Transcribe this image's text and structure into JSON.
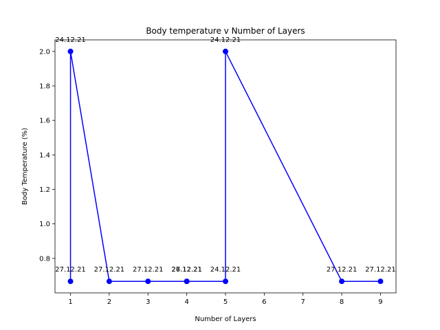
{
  "chart_data": {
    "type": "line",
    "title": "Body temperature v Number of Layers",
    "xlabel": "Number of Layers",
    "ylabel": "Body Temperature (%)",
    "xlim": [
      0.6,
      9.4
    ],
    "ylim": [
      0.6,
      2.067
    ],
    "xticks": [
      1,
      2,
      3,
      4,
      5,
      6,
      7,
      8,
      9
    ],
    "yticks": [
      0.8,
      1.0,
      1.2,
      1.4,
      1.6,
      1.8,
      2.0
    ],
    "ytick_labels": [
      "0.8",
      "1.0",
      "1.2",
      "1.4",
      "1.6",
      "1.8",
      "2.0"
    ],
    "grid": false,
    "series": [
      {
        "color": "#0000ff",
        "marker": "circle",
        "points": [
          {
            "x": 1,
            "y": 0.667,
            "label": "27.12.21"
          },
          {
            "x": 1,
            "y": 2.0,
            "label": "24.12.21"
          },
          {
            "x": 2,
            "y": 0.667,
            "label": "27.12.21"
          },
          {
            "x": 3,
            "y": 0.667,
            "label": "27.12.21"
          },
          {
            "x": 4,
            "y": 0.667,
            "label": "27.12.21"
          },
          {
            "x": 4,
            "y": 0.667,
            "label": "26.12.21"
          },
          {
            "x": 5,
            "y": 0.667,
            "label": "24.12.21"
          },
          {
            "x": 5,
            "y": 2.0,
            "label": "24.12.21"
          },
          {
            "x": 8,
            "y": 0.667,
            "label": "27.12.21"
          },
          {
            "x": 9,
            "y": 0.667,
            "label": "27.12.21"
          }
        ]
      }
    ]
  }
}
